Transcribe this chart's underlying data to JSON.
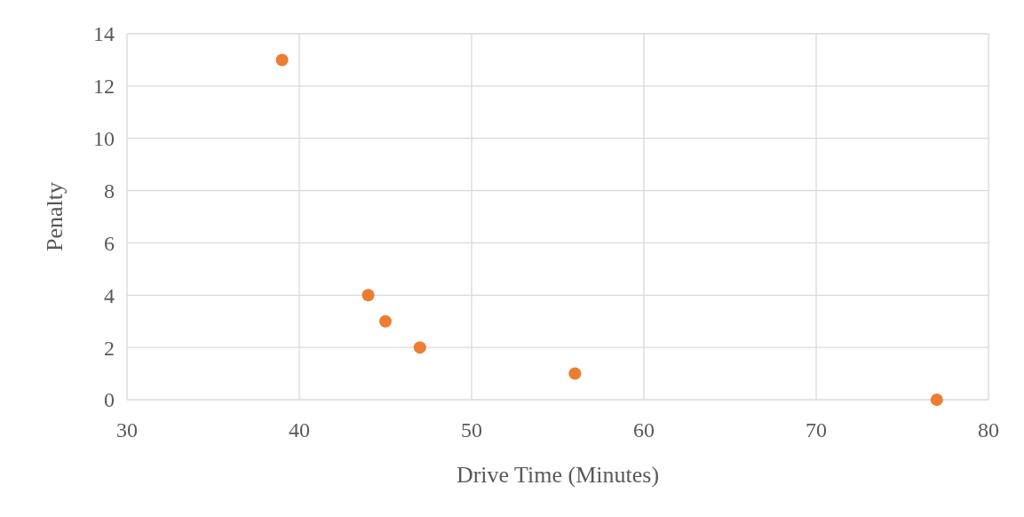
{
  "chart_data": {
    "type": "scatter",
    "xlabel": "Drive Time (Minutes)",
    "ylabel": "Penalty",
    "x": [
      39,
      44,
      45,
      47,
      56,
      77
    ],
    "series": [
      {
        "color": "#ed7d31",
        "values": [
          13,
          4,
          3,
          2,
          1,
          0
        ]
      }
    ],
    "xlim": [
      30,
      80
    ],
    "xticks": [
      30,
      40,
      50,
      60,
      70,
      80
    ],
    "ylim": [
      0,
      14
    ],
    "yticks": [
      0,
      2,
      4,
      6,
      8,
      10,
      12,
      14
    ],
    "grid": true,
    "marker": "circle"
  }
}
